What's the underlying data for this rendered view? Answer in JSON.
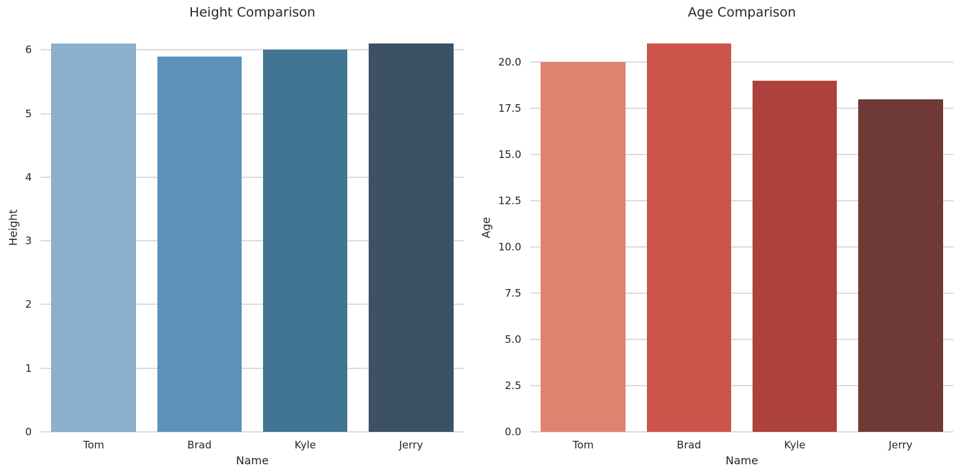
{
  "figure": {
    "background": "#ffffff",
    "text_color": "#262626",
    "grid_color": "#dcdcdc"
  },
  "chart_data": [
    {
      "type": "bar",
      "title": "Height Comparison",
      "xlabel": "Name",
      "ylabel": "Height",
      "categories": [
        "Tom",
        "Brad",
        "Kyle",
        "Jerry"
      ],
      "values": [
        6.1,
        5.9,
        6.0,
        6.1
      ],
      "bar_colors": [
        "#8ab0cd",
        "#5c92ba",
        "#427494",
        "#3c5164"
      ],
      "ylim": [
        0,
        6.405
      ],
      "yticks": [
        0,
        1,
        2,
        3,
        4,
        5,
        6
      ],
      "ytick_labels": [
        "0",
        "1",
        "2",
        "3",
        "4",
        "5",
        "6"
      ],
      "grid": true,
      "legend": "none",
      "bar_width_fraction": 0.8
    },
    {
      "type": "bar",
      "title": "Age Comparison",
      "xlabel": "Name",
      "ylabel": "Age",
      "categories": [
        "Tom",
        "Brad",
        "Kyle",
        "Jerry"
      ],
      "values": [
        20,
        21,
        19,
        18
      ],
      "bar_colors": [
        "#df8270",
        "#cd544a",
        "#ac423b",
        "#6f3a35"
      ],
      "ylim": [
        0,
        22.05
      ],
      "yticks": [
        0,
        2.5,
        5,
        7.5,
        10,
        12.5,
        15,
        17.5,
        20
      ],
      "ytick_labels": [
        "0.0",
        "2.5",
        "5.0",
        "7.5",
        "10.0",
        "12.5",
        "15.0",
        "17.5",
        "20.0"
      ],
      "grid": true,
      "legend": "none",
      "bar_width_fraction": 0.8
    }
  ]
}
